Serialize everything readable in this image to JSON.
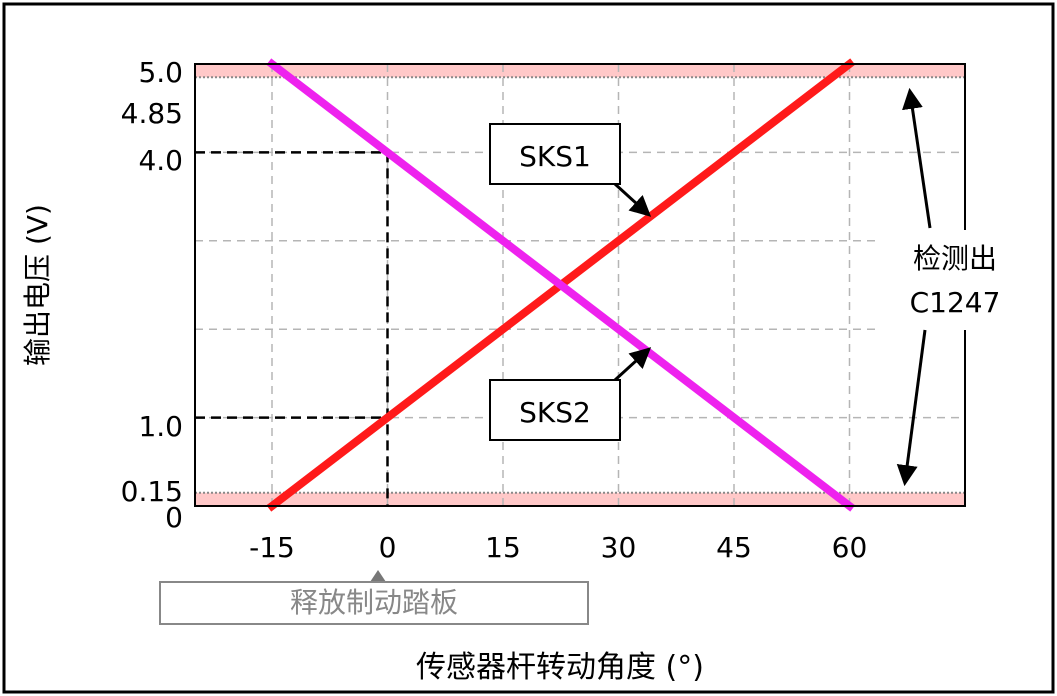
{
  "chart_data": {
    "type": "line",
    "xlabel": "传感器杆转动角度 (°)",
    "ylabel": "输出电压 (V)",
    "xlim": [
      -25,
      75
    ],
    "ylim": [
      0,
      5
    ],
    "x_ticks": [
      "-15",
      "0",
      "15",
      "30",
      "45",
      "60"
    ],
    "x_tick_values": [
      -15,
      0,
      15,
      30,
      45,
      60
    ],
    "y_ticks": [
      "0",
      "0.15",
      "1.0",
      "4.0",
      "4.85",
      "5.0"
    ],
    "y_tick_values": [
      0,
      0.15,
      1.0,
      4.0,
      4.85,
      5.0
    ],
    "grid": true,
    "series": [
      {
        "name": "SKS1",
        "color": "#ff1a1a",
        "x": [
          -15,
          60
        ],
        "y": [
          0,
          5
        ]
      },
      {
        "name": "SKS2",
        "color": "#ee22ee",
        "x": [
          -15,
          60
        ],
        "y": [
          5,
          0
        ]
      }
    ],
    "fault_bands": [
      {
        "y_from": 4.85,
        "y_to": 5.0,
        "color": "#ffc8c8"
      },
      {
        "y_from": 0,
        "y_to": 0.15,
        "color": "#ffc8c8"
      }
    ],
    "reference_points": [
      {
        "x": 0,
        "y": 4.0
      },
      {
        "x": 0,
        "y": 1.0
      }
    ],
    "annotations": {
      "fault_label_line1": "检测出",
      "fault_label_line2": "C1247",
      "pedal_label": "释放制动踏板"
    }
  }
}
